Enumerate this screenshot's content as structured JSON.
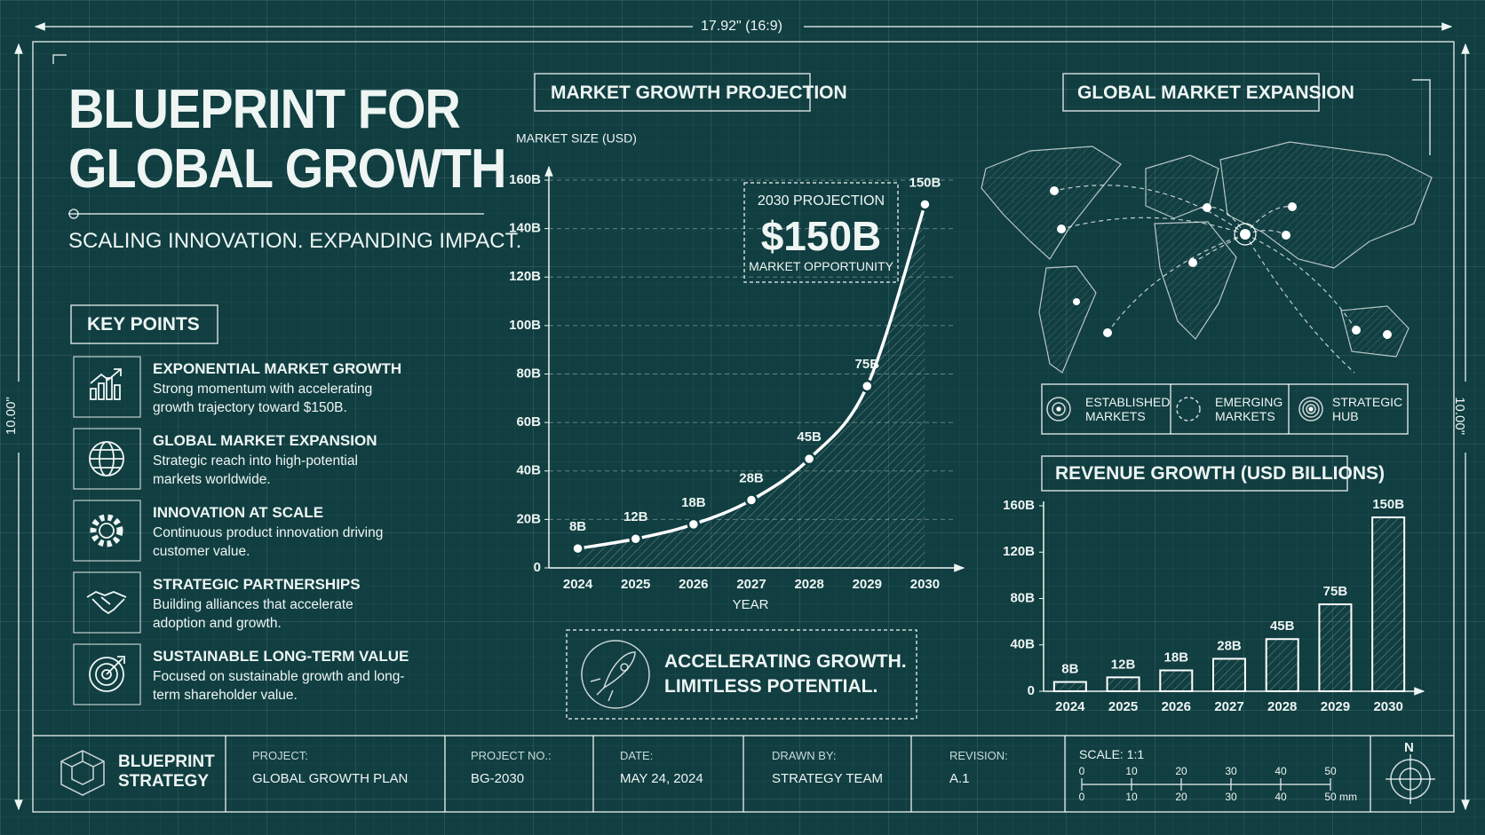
{
  "dimension": "17.92\" (16:9)",
  "side_labels": [
    "10.00\"",
    "10.00\""
  ],
  "header": {
    "title": [
      "BLUEPRINT FOR",
      "GLOBAL GROWTH"
    ],
    "subtitle": "SCALING INNOVATION. EXPANDING IMPACT."
  },
  "key_points": {
    "heading": "KEY POINTS",
    "items": [
      {
        "title": "EXPONENTIAL MARKET GROWTH",
        "text": "Strong momentum with accelerating growth trajectory toward $150B."
      },
      {
        "title": "GLOBAL MARKET EXPANSION",
        "text": "Strategic reach into high-potential markets worldwide."
      },
      {
        "title": "INNOVATION AT SCALE",
        "text": "Continuous product innovation driving customer value."
      },
      {
        "title": "STRATEGIC PARTNERSHIPS",
        "text": "Building alliances that accelerate adoption and growth."
      },
      {
        "title": "SUSTAINABLE LONG-TERM VALUE",
        "text": "Focused on sustainable growth and long-term shareholder value."
      }
    ]
  },
  "callout": {
    "label": "2030 PROJECTION",
    "value": "$150B",
    "note": "MARKET OPPORTUNITY"
  },
  "tagline": [
    "ACCELERATING GROWTH.",
    "LIMITLESS POTENTIAL."
  ],
  "map": {
    "title": "GLOBAL MARKET EXPANSION",
    "legend": [
      "ESTABLISHED MARKETS",
      "EMERGING MARKETS",
      "STRATEGIC HUB"
    ]
  },
  "title_block": {
    "logo": "BLUEPRINT STRATEGY",
    "fields": [
      {
        "label": "PROJECT:",
        "value": "GLOBAL GROWTH PLAN"
      },
      {
        "label": "PROJECT NO.:",
        "value": "BG-2030"
      },
      {
        "label": "DATE:",
        "value": "MAY 24, 2024"
      },
      {
        "label": "DRAWN BY:",
        "value": "STRATEGY TEAM"
      },
      {
        "label": "REVISION:",
        "value": "A.1"
      }
    ],
    "scale": "SCALE: 1:1",
    "scale_ticks": [
      0,
      10,
      20,
      30,
      40,
      50
    ],
    "scale_unit": "mm",
    "north": "N"
  },
  "chart_data": [
    {
      "type": "line",
      "title": "MARKET GROWTH PROJECTION",
      "y_label": "MARKET SIZE (USD)",
      "x_label": "YEAR",
      "categories": [
        "2024",
        "2025",
        "2026",
        "2027",
        "2028",
        "2029",
        "2030"
      ],
      "values": [
        8,
        12,
        18,
        28,
        45,
        75,
        150
      ],
      "value_labels": [
        "8B",
        "12B",
        "18B",
        "28B",
        "45B",
        "75B",
        "150B"
      ],
      "ylim": [
        0,
        160
      ],
      "yticks": [
        0,
        {
          "value": 20,
          "label": "20B"
        },
        {
          "value": 40,
          "label": "40B"
        },
        {
          "value": 60,
          "label": "60B"
        },
        {
          "value": 80,
          "label": "80B"
        },
        {
          "value": 100,
          "label": "100B"
        },
        {
          "value": 120,
          "label": "120B"
        },
        {
          "value": 140,
          "label": "140B"
        },
        {
          "value": 160,
          "label": "160B"
        }
      ],
      "color": "#ffffff",
      "grid": true
    },
    {
      "type": "bar",
      "title": "REVENUE GROWTH (USD BILLIONS)",
      "categories": [
        "2024",
        "2025",
        "2026",
        "2027",
        "2028",
        "2029",
        "2030"
      ],
      "values": [
        8,
        12,
        18,
        28,
        45,
        75,
        150
      ],
      "value_labels": [
        "8B",
        "12B",
        "18B",
        "28B",
        "45B",
        "75B",
        "150B"
      ],
      "ylim": [
        0,
        160
      ],
      "yticks": [
        0,
        {
          "value": 40,
          "label": "40B"
        },
        {
          "value": 80,
          "label": "80B"
        },
        {
          "value": 120,
          "label": "120B"
        },
        {
          "value": 160,
          "label": "160B"
        }
      ],
      "color": "#ffffff",
      "grid": false
    }
  ]
}
